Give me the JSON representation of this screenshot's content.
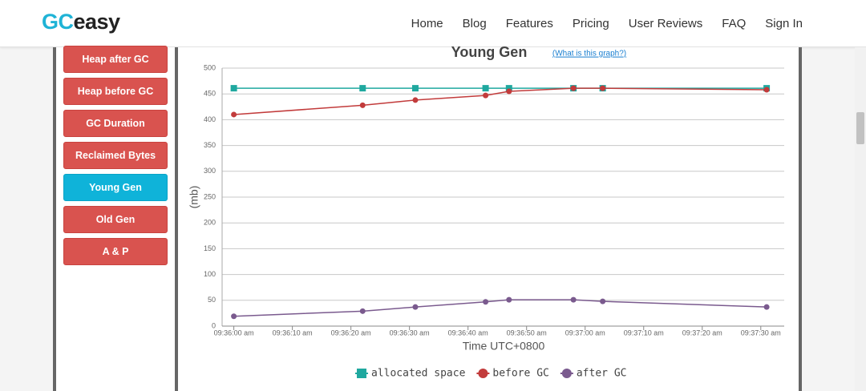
{
  "logo": {
    "prefix": "GC",
    "suffix": "easy"
  },
  "nav": [
    "Home",
    "Blog",
    "Features",
    "Pricing",
    "User Reviews",
    "FAQ",
    "Sign In"
  ],
  "sidebar": {
    "items": [
      "Heap after GC",
      "Heap before GC",
      "GC Duration",
      "Reclaimed Bytes",
      "Young Gen",
      "Old Gen",
      "A & P"
    ],
    "active": 4
  },
  "chart_data": {
    "type": "line",
    "title": "Young Gen",
    "link": "(What is this graph?)",
    "x_label": "Time UTC+0800",
    "y_label": "(mb)",
    "x": [
      "09:36:00 am",
      "09:36:22 am",
      "09:36:31 am",
      "09:36:43 am",
      "09:36:47 am",
      "09:36:58 am",
      "09:37:03 am",
      "09:37:31 am"
    ],
    "series": [
      {
        "name": "allocated space",
        "color": "#1fa89f",
        "marker": "square",
        "values": [
          461,
          461,
          461,
          461,
          461,
          461,
          461,
          461
        ]
      },
      {
        "name": "before GC",
        "color": "#c23b3b",
        "marker": "circle",
        "values": [
          410,
          428,
          438,
          447,
          455,
          461,
          461,
          458
        ]
      },
      {
        "name": "after GC",
        "color": "#7a5a8e",
        "marker": "circle",
        "values": [
          19,
          29,
          37,
          47,
          51,
          51,
          48,
          37
        ]
      }
    ],
    "xlim": [
      "09:35:58 am",
      "09:37:34 am"
    ],
    "xticks": [
      "09:36:00 am",
      "09:36:10 am",
      "09:36:20 am",
      "09:36:30 am",
      "09:36:40 am",
      "09:36:50 am",
      "09:37:00 am",
      "09:37:10 am",
      "09:37:20 am",
      "09:37:30 am"
    ],
    "ylim": [
      0,
      500
    ],
    "yticks": [
      0,
      50,
      100,
      150,
      200,
      250,
      300,
      350,
      400,
      450,
      500
    ],
    "grid": true,
    "legend": "bottom"
  }
}
